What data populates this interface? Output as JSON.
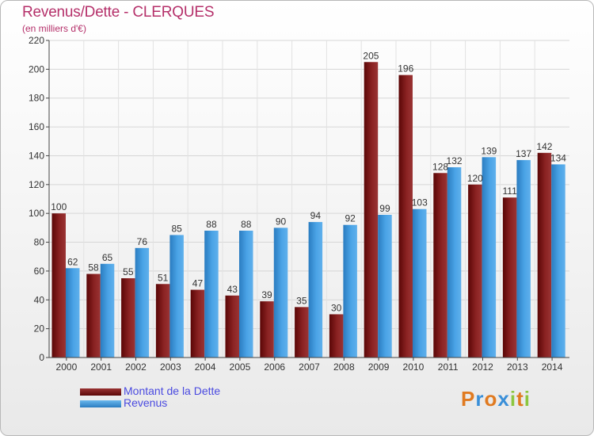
{
  "chart_data": {
    "type": "bar",
    "title": "Revenus/Dette - CLERQUES",
    "subtitle": "(en milliers d'€)",
    "categories": [
      "2000",
      "2001",
      "2002",
      "2003",
      "2004",
      "2005",
      "2006",
      "2007",
      "2008",
      "2009",
      "2010",
      "2011",
      "2012",
      "2013",
      "2014"
    ],
    "series": [
      {
        "name": "Montant de la Dette",
        "color": "#7a1a1a",
        "values": [
          100,
          58,
          55,
          51,
          47,
          43,
          39,
          35,
          30,
          205,
          196,
          128,
          120,
          111,
          142
        ]
      },
      {
        "name": "Revenus",
        "color": "#4aa3e6",
        "values": [
          62,
          65,
          76,
          85,
          88,
          88,
          90,
          94,
          92,
          99,
          103,
          132,
          139,
          137,
          134
        ]
      }
    ],
    "ylim": [
      0,
      220
    ],
    "yticks": [
      0,
      20,
      40,
      60,
      80,
      100,
      120,
      140,
      160,
      180,
      200,
      220
    ],
    "grid": true,
    "legend": "bottom-left"
  },
  "logo": {
    "letters": [
      {
        "ch": "P",
        "color": "#e07a20"
      },
      {
        "ch": "r",
        "color": "#3a8fd8"
      },
      {
        "ch": "o",
        "color": "#e07a20"
      },
      {
        "ch": "x",
        "color": "#3a8fd8"
      },
      {
        "ch": "i",
        "color": "#8cc63f"
      },
      {
        "ch": "t",
        "color": "#e07a20"
      },
      {
        "ch": "i",
        "color": "#8cc63f"
      }
    ]
  }
}
